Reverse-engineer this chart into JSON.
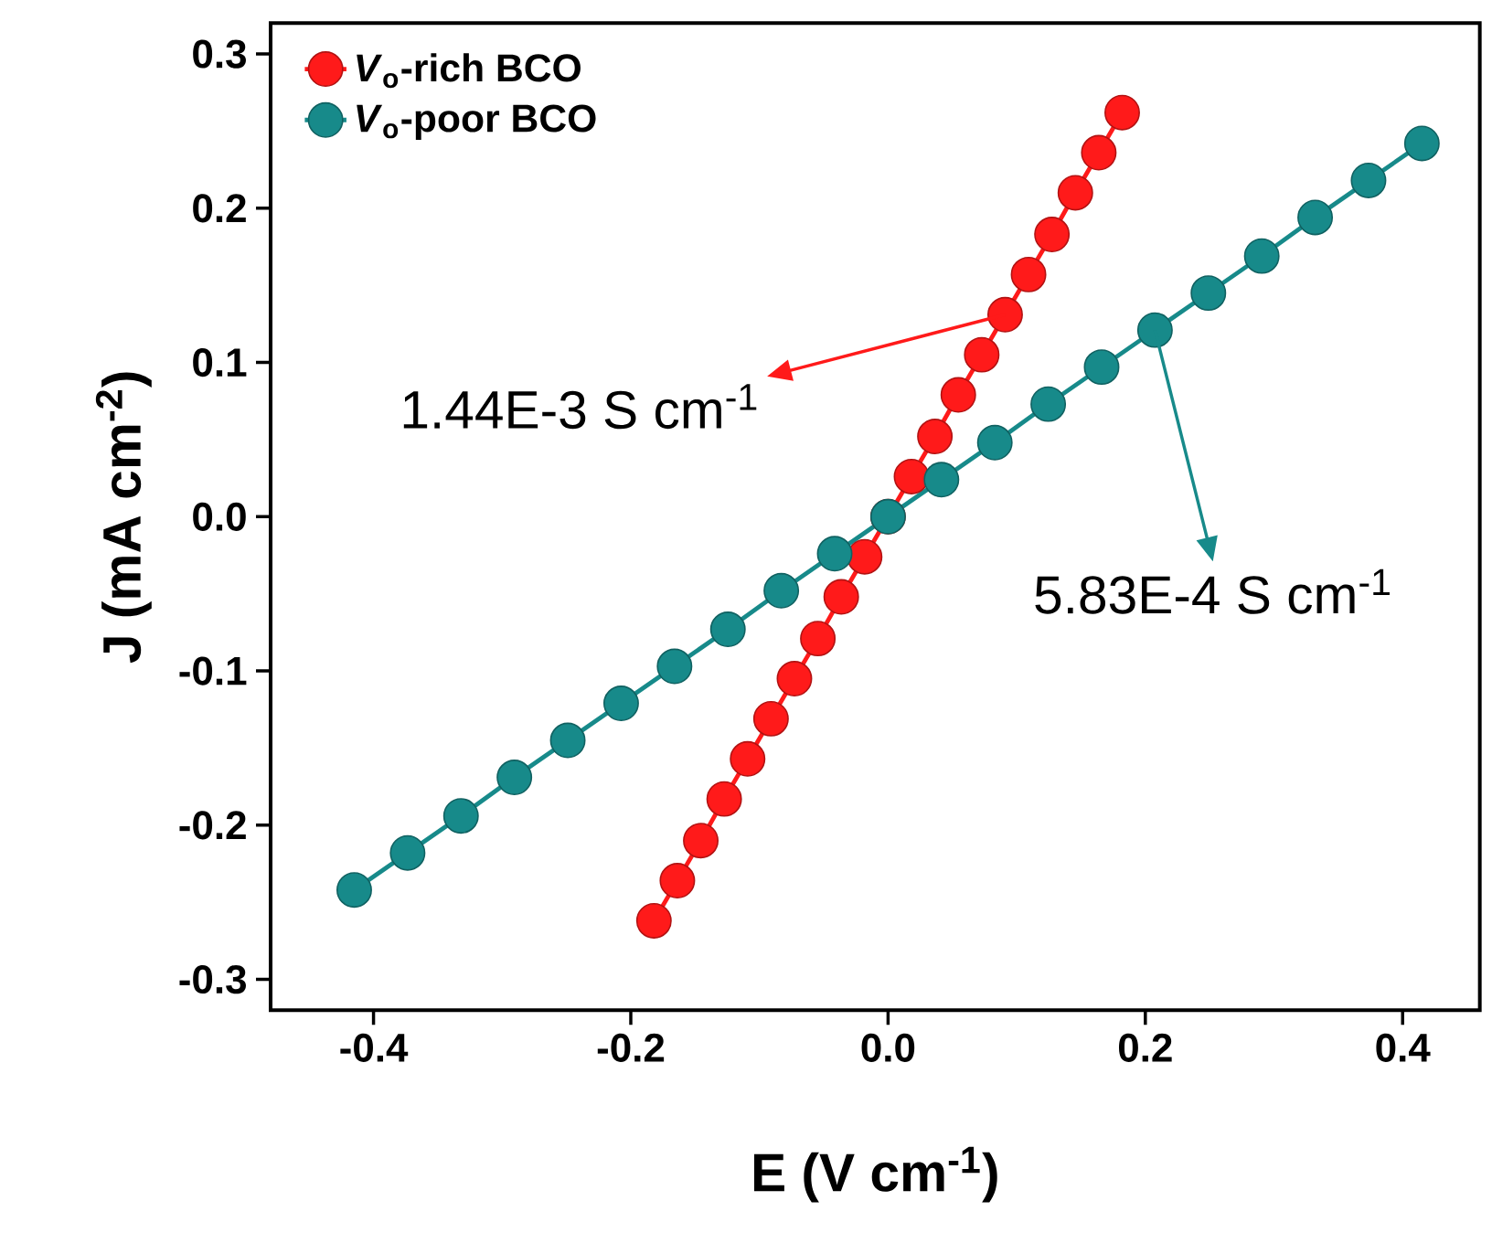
{
  "chart_data": {
    "type": "line",
    "xlabel": "E (V cm$^{-1}$)",
    "ylabel": "J (mA cm$^{-2}$)",
    "x": [
      -0.182,
      -0.1638,
      -0.1456,
      -0.1274,
      -0.1092,
      -0.091,
      -0.0728,
      -0.0546,
      -0.0364,
      -0.0182,
      0,
      0.0182,
      0.0364,
      0.0546,
      0.0728,
      0.091,
      0.1092,
      0.1274,
      0.1456,
      0.1638,
      0.182
    ],
    "series": [
      {
        "name": "*V*$_{o}$-rich BCO",
        "color": "#ff1a1a",
        "values": [
          -0.262,
          -0.236,
          -0.21,
          -0.183,
          -0.157,
          -0.131,
          -0.105,
          -0.079,
          -0.052,
          -0.026,
          0,
          0.026,
          0.052,
          0.079,
          0.105,
          0.131,
          0.157,
          0.183,
          0.21,
          0.236,
          0.262
        ]
      },
      {
        "name": "*V*$_{o}$-poor BCO",
        "color": "#178a8a",
        "x": [
          -0.415,
          -0.3735,
          -0.332,
          -0.2905,
          -0.249,
          -0.2075,
          -0.166,
          -0.1245,
          -0.083,
          -0.0415,
          0,
          0.0415,
          0.083,
          0.1245,
          0.166,
          0.2075,
          0.249,
          0.2905,
          0.332,
          0.3735,
          0.415
        ],
        "values": [
          -0.242,
          -0.218,
          -0.194,
          -0.169,
          -0.145,
          -0.121,
          -0.097,
          -0.073,
          -0.048,
          -0.024,
          0,
          0.024,
          0.048,
          0.073,
          0.097,
          0.121,
          0.145,
          0.169,
          0.194,
          0.218,
          0.242
        ]
      }
    ],
    "annotations": [
      "1.44E-3 S cm$^{-1}$",
      "5.83E-4 S cm$^{-1}$"
    ],
    "xlim": [
      -0.48,
      0.46
    ],
    "ylim": [
      -0.32,
      0.32
    ],
    "xticks": [
      {
        "value": -0.4,
        "label": "-0.4"
      },
      {
        "value": -0.2,
        "label": "-0.2"
      },
      {
        "value": 0,
        "label": "0.0"
      },
      {
        "value": 0.2,
        "label": "0.2"
      },
      {
        "value": 0.4,
        "label": "0.4"
      }
    ],
    "yticks": [
      {
        "value": -0.3,
        "label": "-0.3"
      },
      {
        "value": -0.2,
        "label": "-0.2"
      },
      {
        "value": -0.1,
        "label": "-0.1"
      },
      {
        "value": 0,
        "label": "0.0"
      },
      {
        "value": 0.1,
        "label": "0.1"
      },
      {
        "value": 0.2,
        "label": "0.2"
      },
      {
        "value": 0.3,
        "label": "0.3"
      }
    ],
    "legend": "top left",
    "marker": "circle",
    "line_style": "solid",
    "grid": false
  }
}
